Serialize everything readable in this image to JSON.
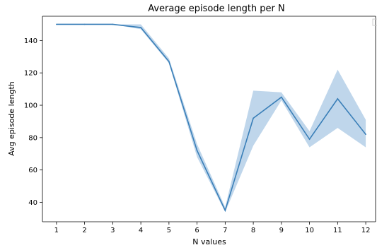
{
  "chart_data": {
    "type": "line",
    "title": "Average episode length per N",
    "xlabel": "N values",
    "ylabel": "Avg episode length",
    "x": [
      1,
      2,
      3,
      4,
      5,
      6,
      7,
      8,
      9,
      10,
      11,
      12
    ],
    "xlim": [
      0.5,
      12.35
    ],
    "ylim": [
      28,
      155
    ],
    "yticks": [
      40,
      60,
      80,
      100,
      120,
      140
    ],
    "series": [
      {
        "values": [
          150,
          150,
          150,
          148,
          127,
          72,
          35,
          92,
          105,
          79,
          104,
          82
        ],
        "ci_lower": [
          150,
          150,
          150,
          147,
          126,
          68,
          34,
          75,
          103,
          74,
          86,
          74
        ],
        "ci_upper": [
          150,
          150,
          150,
          150,
          129,
          76,
          37,
          109,
          108,
          84,
          122,
          91
        ],
        "color": "#3a7fb8",
        "band_color": "#a9c8e4"
      }
    ],
    "grid": false,
    "legend": "top-right, empty"
  }
}
